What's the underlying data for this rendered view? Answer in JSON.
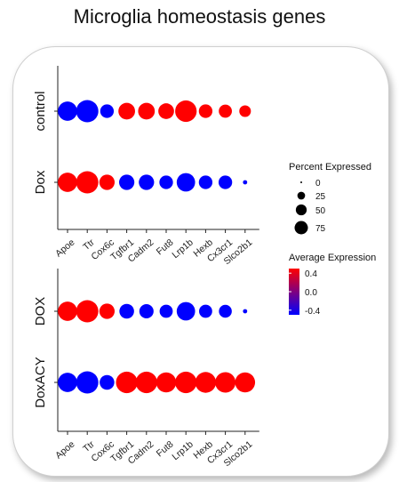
{
  "title": "Microglia homeostasis genes",
  "chart_data": [
    {
      "type": "dotplot",
      "categories": [
        "Apoe",
        "Ttr",
        "Cox6c",
        "Tgfbr1",
        "Cadm2",
        "Fut8",
        "Lrp1b",
        "Hexb",
        "Cx3cr1",
        "Slco2b1"
      ],
      "groups": [
        {
          "name": "control",
          "percent": [
            60,
            80,
            30,
            45,
            45,
            40,
            75,
            30,
            28,
            22
          ],
          "avg_expression": [
            -0.5,
            -0.5,
            -0.5,
            0.5,
            0.5,
            0.5,
            0.5,
            0.5,
            0.5,
            0.5
          ]
        },
        {
          "name": "Dox",
          "percent": [
            60,
            80,
            38,
            38,
            38,
            30,
            55,
            30,
            30,
            3
          ],
          "avg_expression": [
            0.5,
            0.5,
            0.5,
            -0.5,
            -0.5,
            -0.5,
            -0.5,
            -0.5,
            -0.5,
            -0.5
          ]
        }
      ]
    },
    {
      "type": "dotplot",
      "categories": [
        "Apoe",
        "Ttr",
        "Cox6c",
        "Tgfbr1",
        "Cadm2",
        "Fut8",
        "Lrp1b",
        "Hexb",
        "Cx3cr1",
        "Slco2b1"
      ],
      "groups": [
        {
          "name": "DOX",
          "percent": [
            60,
            80,
            38,
            35,
            33,
            28,
            55,
            28,
            27,
            3
          ],
          "avg_expression": [
            0.5,
            0.5,
            0.5,
            -0.5,
            -0.5,
            -0.5,
            -0.5,
            -0.5,
            -0.5,
            -0.5
          ]
        },
        {
          "name": "DoxACY",
          "percent": [
            60,
            80,
            35,
            75,
            75,
            65,
            75,
            70,
            68,
            65
          ],
          "avg_expression": [
            -0.5,
            -0.5,
            -0.5,
            0.5,
            0.5,
            0.5,
            0.5,
            0.5,
            0.5,
            0.5
          ]
        }
      ]
    }
  ],
  "legend": {
    "size_title": "Percent Expressed",
    "size_items": [
      {
        "label": "0",
        "value": 0
      },
      {
        "label": "25",
        "value": 25
      },
      {
        "label": "50",
        "value": 50
      },
      {
        "label": "75",
        "value": 75
      }
    ],
    "color_title": "Average Expression",
    "color_ticks": [
      {
        "label": "0.4",
        "value": 0.4
      },
      {
        "label": "0.0",
        "value": 0.0
      },
      {
        "label": "-0.4",
        "value": -0.4
      }
    ],
    "color_high": "#ff0000",
    "color_low": "#0000ff"
  }
}
